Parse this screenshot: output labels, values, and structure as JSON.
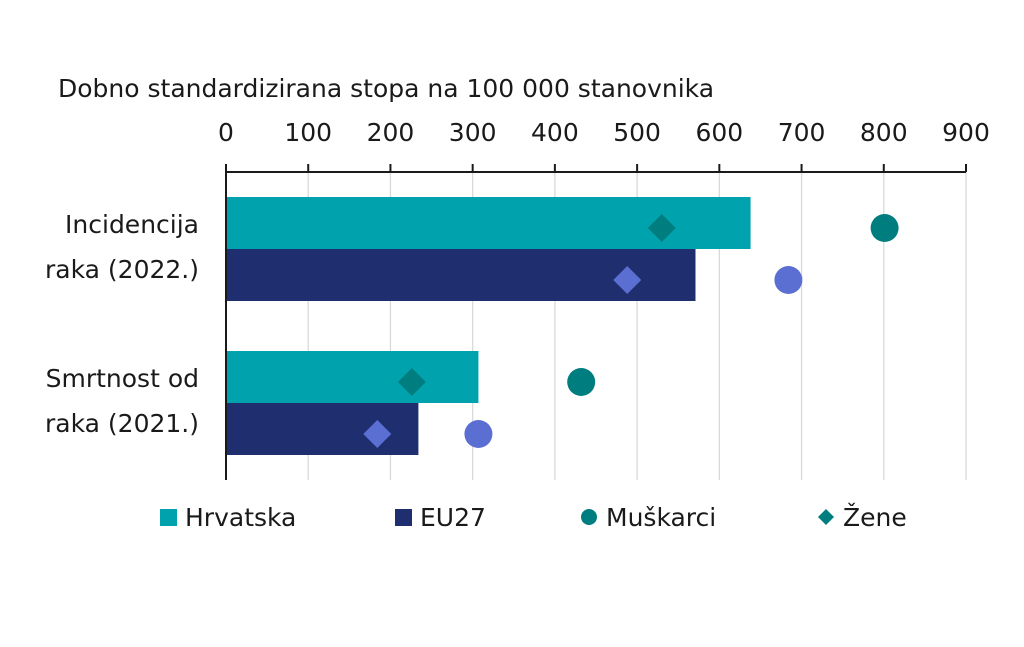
{
  "chart_data": {
    "type": "bar",
    "orientation": "horizontal",
    "title": "",
    "xlabel": "Dobno standardizirana stopa na 100 000 stanovnika",
    "xlim": [
      0,
      900
    ],
    "xticks": [
      0,
      100,
      200,
      300,
      400,
      500,
      600,
      700,
      800,
      900
    ],
    "xtick_labels": [
      "0",
      "100",
      "200",
      "300",
      "400",
      "500",
      "600",
      "700",
      "800",
      "900"
    ],
    "grid": true,
    "legend_position": "bottom",
    "categories": [
      {
        "label_lines": [
          "Incidencija",
          "raka (2022.)"
        ]
      },
      {
        "label_lines": [
          "Smrtnost od",
          "raka (2021.)"
        ]
      }
    ],
    "series": [
      {
        "name": "Hrvatska",
        "kind": "bar",
        "color": "#00a3ad",
        "values": [
          638,
          307
        ]
      },
      {
        "name": "EU27",
        "kind": "bar",
        "color": "#1f2e6e",
        "values": [
          571,
          234
        ]
      },
      {
        "name": "Muškarci",
        "kind": "circle",
        "color": "#007d7f",
        "values": [
          801,
          432
        ]
      },
      {
        "name": "Žene",
        "kind": "diamond",
        "color": "#007d7f",
        "values": [
          530,
          226
        ]
      },
      {
        "name": "Muškarci (EU27)",
        "kind": "circle",
        "color": "#5b6fd3",
        "values": [
          684,
          307
        ],
        "in_legend": false
      },
      {
        "name": "Žene (EU27)",
        "kind": "diamond",
        "color": "#5b6fd3",
        "values": [
          488,
          184
        ],
        "in_legend": false
      }
    ],
    "legend": [
      {
        "label": "Hrvatska",
        "symbol": "square",
        "color": "#00a3ad"
      },
      {
        "label": "EU27",
        "symbol": "square",
        "color": "#1f2e6e"
      },
      {
        "label": "Muškarci",
        "symbol": "circle",
        "color": "#007d7f"
      },
      {
        "label": "Žene",
        "symbol": "diamond",
        "color": "#007d7f"
      }
    ]
  }
}
